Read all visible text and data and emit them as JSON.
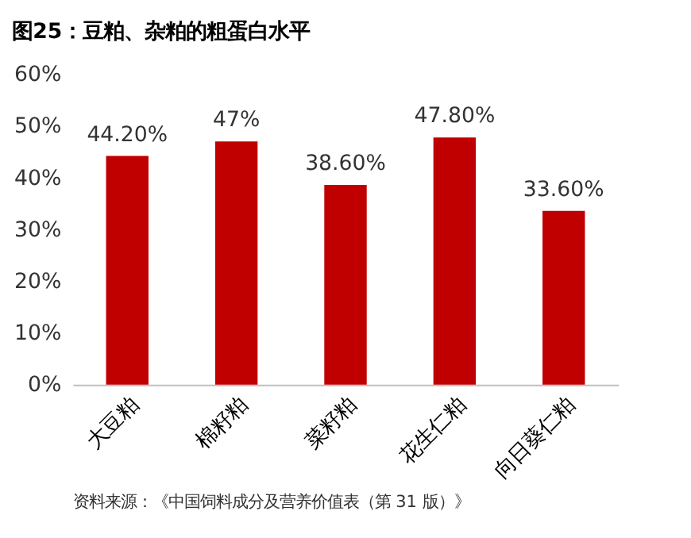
{
  "chart_data": {
    "type": "bar",
    "title": "图25：豆粕、杂粕的粗蛋白水平",
    "categories": [
      "大豆粕",
      "棉籽粕",
      "菜籽粕",
      "花生仁粕",
      "向日葵仁粕"
    ],
    "values": [
      44.2,
      47,
      38.6,
      47.8,
      33.6
    ],
    "value_labels": [
      "44.20%",
      "47%",
      "38.60%",
      "47.80%",
      "33.60%"
    ],
    "color": "#c00000",
    "ylim": [
      0,
      60
    ],
    "yticks": [
      {
        "value": 0,
        "label": "0%"
      },
      {
        "value": 10,
        "label": "10%"
      },
      {
        "value": 20,
        "label": "20%"
      },
      {
        "value": 30,
        "label": "30%"
      },
      {
        "value": 40,
        "label": "40%"
      },
      {
        "value": 50,
        "label": "50%"
      },
      {
        "value": 60,
        "label": "60%"
      }
    ],
    "grid": false,
    "annotations": [
      "资料来源：《中国饲料成分及营养价值表（第 31 版）》"
    ]
  }
}
